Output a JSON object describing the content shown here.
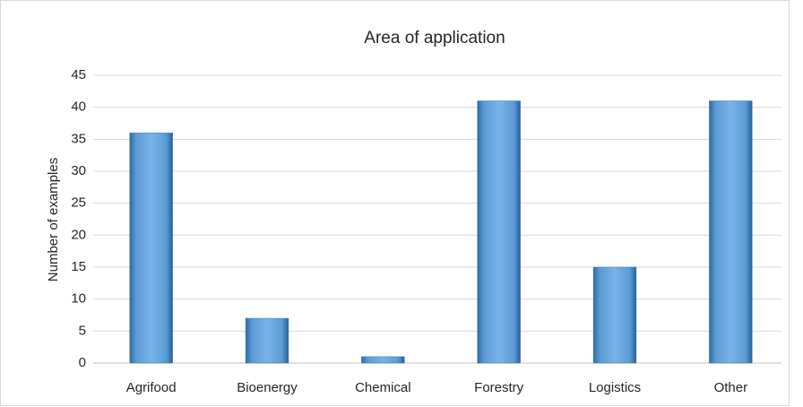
{
  "chart_data": {
    "type": "bar",
    "title": "Area of application",
    "y_label": "Number of examples",
    "categories": [
      "Agrifood",
      "Bioenergy",
      "Chemical",
      "Forestry",
      "Logistics",
      "Other"
    ],
    "values": [
      36,
      7,
      1,
      41,
      15,
      41
    ],
    "color": "#5b9bd5",
    "ylim": [
      0,
      45
    ],
    "yticks": [
      0,
      5,
      10,
      15,
      20,
      25,
      30,
      35,
      40,
      45
    ],
    "grid": true
  }
}
